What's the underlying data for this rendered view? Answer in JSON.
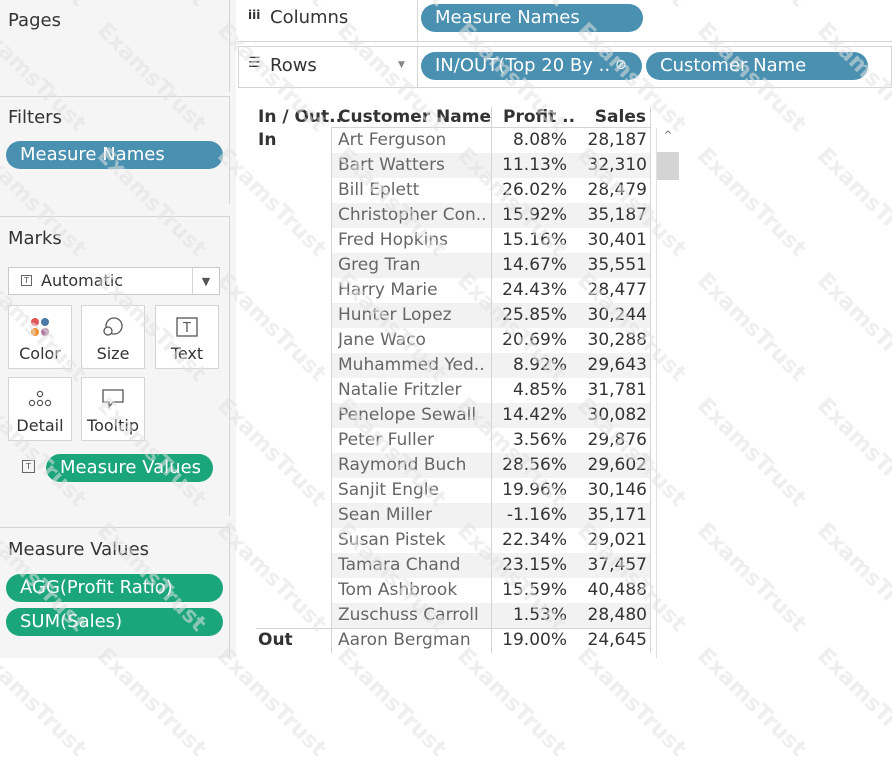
{
  "pages": {
    "title": "Pages"
  },
  "filters": {
    "title": "Filters",
    "pill": "Measure Names"
  },
  "marks": {
    "title": "Marks",
    "type_label": "Automatic",
    "buttons": [
      "Color",
      "Size",
      "Text",
      "Detail",
      "Tooltip"
    ],
    "text_pill": "Measure Values"
  },
  "measure_values": {
    "title": "Measure Values",
    "pills": [
      "AGG(Profit Ratio)",
      "SUM(Sales)"
    ]
  },
  "shelves": {
    "columns_label": "Columns",
    "columns_pills": [
      "Measure Names"
    ],
    "rows_label": "Rows",
    "rows_pills": [
      "IN/OUT(Top 20 By ..",
      "Customer Name"
    ]
  },
  "table": {
    "headers": [
      "In / Out..",
      "Customer Name",
      "Profit ..",
      "Sales"
    ],
    "groups": [
      {
        "label": "In",
        "rows": [
          {
            "name": "Art Ferguson",
            "profit": "8.08%",
            "sales": "28,187"
          },
          {
            "name": "Bart Watters",
            "profit": "11.13%",
            "sales": "32,310"
          },
          {
            "name": "Bill Eplett",
            "profit": "26.02%",
            "sales": "28,479"
          },
          {
            "name": "Christopher Con..",
            "profit": "15.92%",
            "sales": "35,187"
          },
          {
            "name": "Fred Hopkins",
            "profit": "15.16%",
            "sales": "30,401"
          },
          {
            "name": "Greg Tran",
            "profit": "14.67%",
            "sales": "35,551"
          },
          {
            "name": "Harry Marie",
            "profit": "24.43%",
            "sales": "28,477"
          },
          {
            "name": "Hunter Lopez",
            "profit": "25.85%",
            "sales": "30,244"
          },
          {
            "name": "Jane Waco",
            "profit": "20.69%",
            "sales": "30,288"
          },
          {
            "name": "Muhammed Yed..",
            "profit": "8.92%",
            "sales": "29,643"
          },
          {
            "name": "Natalie Fritzler",
            "profit": "4.85%",
            "sales": "31,781"
          },
          {
            "name": "Penelope Sewall",
            "profit": "14.42%",
            "sales": "30,082"
          },
          {
            "name": "Peter Fuller",
            "profit": "3.56%",
            "sales": "29,876"
          },
          {
            "name": "Raymond Buch",
            "profit": "28.56%",
            "sales": "29,602"
          },
          {
            "name": "Sanjit Engle",
            "profit": "19.96%",
            "sales": "30,146"
          },
          {
            "name": "Sean Miller",
            "profit": "-1.16%",
            "sales": "35,171"
          },
          {
            "name": "Susan Pistek",
            "profit": "22.34%",
            "sales": "29,021"
          },
          {
            "name": "Tamara Chand",
            "profit": "23.15%",
            "sales": "37,457"
          },
          {
            "name": "Tom Ashbrook",
            "profit": "15.59%",
            "sales": "40,488"
          },
          {
            "name": "Zuschuss Carroll",
            "profit": "1.53%",
            "sales": "28,480"
          }
        ]
      },
      {
        "label": "Out",
        "rows": [
          {
            "name": "Aaron Bergman",
            "profit": "19.00%",
            "sales": "24,645"
          }
        ]
      }
    ]
  },
  "watermark": "ExamsTrust"
}
